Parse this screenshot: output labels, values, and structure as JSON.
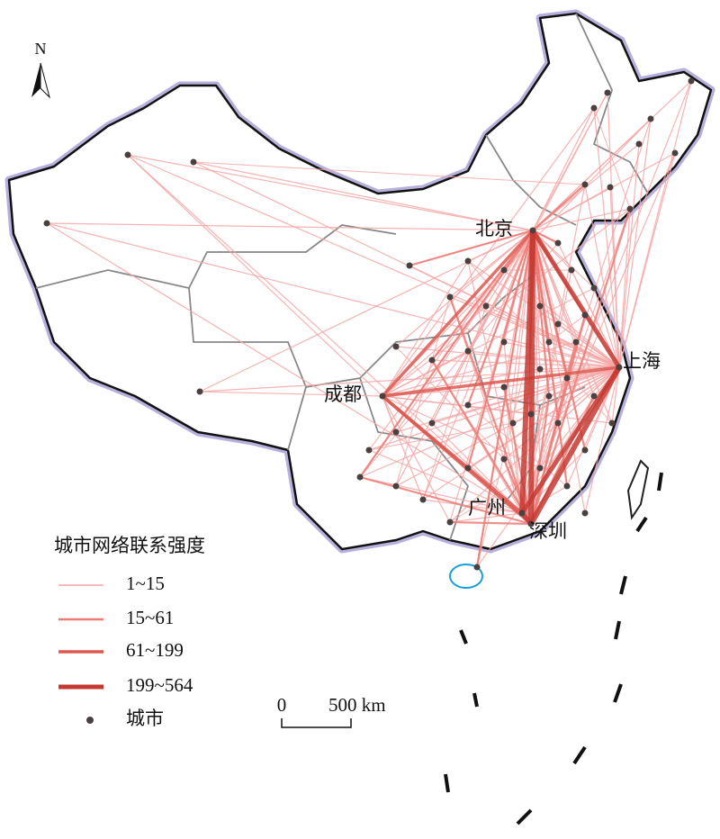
{
  "north": "N",
  "city_labels": [
    "北京",
    "上海",
    "成都",
    "广州",
    "深圳"
  ],
  "legend": {
    "title": "城市网络联系强度",
    "items": [
      "1~15",
      "15~61",
      "61~199",
      "199~564"
    ],
    "city": "城市"
  },
  "scale_bar": {
    "start": "0",
    "end": "500 km"
  }
}
